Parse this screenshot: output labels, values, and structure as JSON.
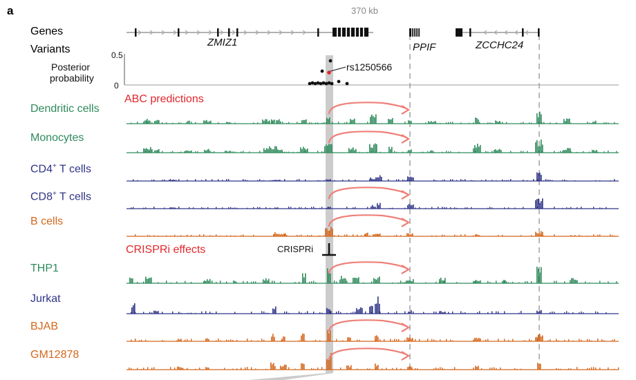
{
  "panel_label": "a",
  "scale_label": "370 kb",
  "headers": {
    "genes": "Genes",
    "variants": "Variants",
    "posterior": [
      "Posterior",
      "probability"
    ],
    "y_top": "0.5",
    "y_bottom": "0",
    "abc": "ABC predictions",
    "crispri": "CRISPRi effects",
    "crispri_marker": "CRISPRi"
  },
  "genes": [
    "ZMIZ1",
    "PPIF",
    "ZCCHC24"
  ],
  "variant": {
    "label": "rs1250566"
  },
  "colors": {
    "green": "#2e8a5c",
    "navy": "#2f3486",
    "orange": "#d4671d",
    "highlight": "#cccccc",
    "arrow": "#ef7f78",
    "heading": "#e3262b"
  },
  "tracks": [
    {
      "label": "Dendritic cells",
      "color": "green",
      "arrow": true
    },
    {
      "label": "Monocytes",
      "color": "green",
      "arrow": true
    },
    {
      "label": "CD4",
      "sup": "+",
      "suffix": " T cells",
      "color": "navy",
      "arrow": false
    },
    {
      "label": "CD8",
      "sup": "+",
      "suffix": " T cells",
      "color": "navy",
      "arrow": true
    },
    {
      "label": "B cells",
      "color": "orange",
      "arrow": true
    },
    {
      "label": "THP1",
      "color": "green",
      "arrow": true
    },
    {
      "label": "Jurkat",
      "color": "navy",
      "arrow": false
    },
    {
      "label": "BJAB",
      "color": "orange",
      "arrow": true
    },
    {
      "label": "GM12878",
      "color": "orange",
      "arrow": true
    }
  ]
}
